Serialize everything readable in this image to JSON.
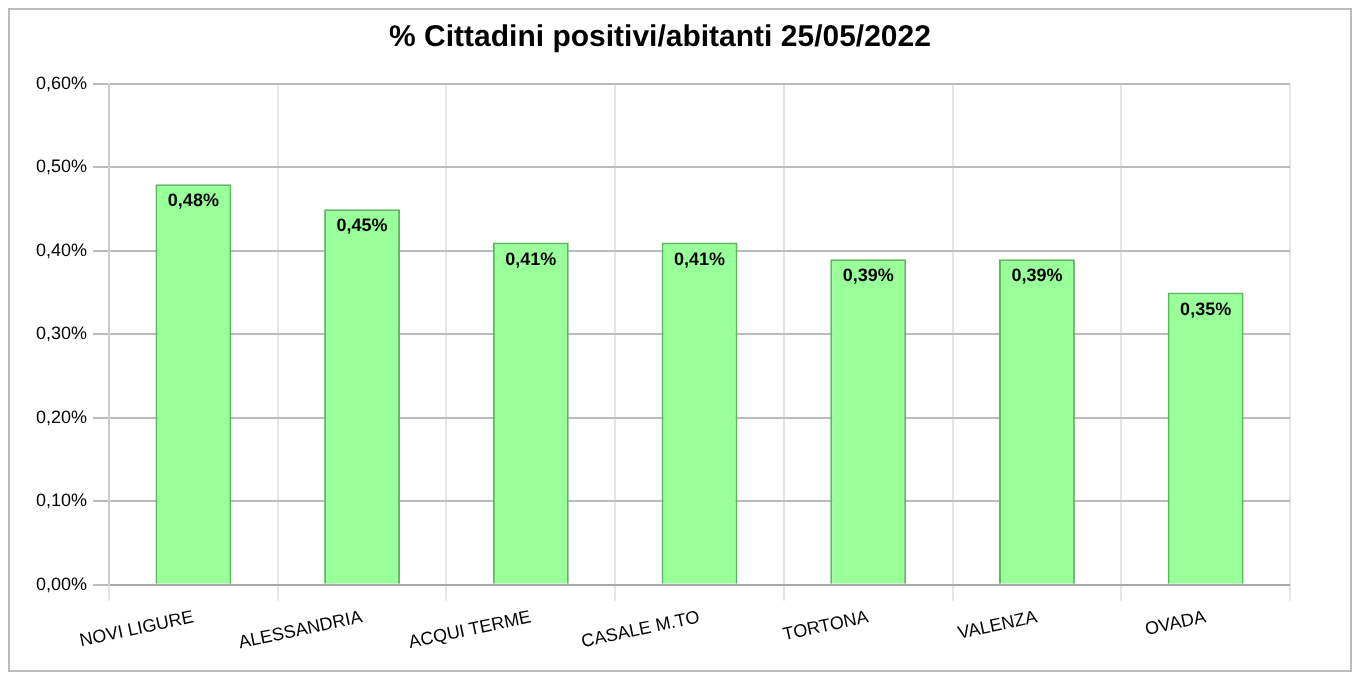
{
  "chart_data": {
    "type": "bar",
    "title": "% Cittadini positivi/abitanti 25/05/2022",
    "categories": [
      "NOVI LIGURE",
      "ALESSANDRIA",
      "ACQUI TERME",
      "CASALE M.TO",
      "TORTONA",
      "VALENZA",
      "OVADA"
    ],
    "values": [
      0.48,
      0.45,
      0.41,
      0.41,
      0.39,
      0.39,
      0.35
    ],
    "value_labels": [
      "0,48%",
      "0,45%",
      "0,41%",
      "0,41%",
      "0,39%",
      "0,39%",
      "0,35%"
    ],
    "color": "#99ff99",
    "ylim": [
      0,
      0.6
    ],
    "yticks": [
      {
        "value": 0,
        "label": "0,00%"
      },
      {
        "value": 0.1,
        "label": "0,10%"
      },
      {
        "value": 0.2,
        "label": "0,20%"
      },
      {
        "value": 0.3,
        "label": "0,30%"
      },
      {
        "value": 0.4,
        "label": "0,40%"
      },
      {
        "value": 0.5,
        "label": "0,50%"
      },
      {
        "value": 0.6,
        "label": "0,60%"
      }
    ],
    "grid": true,
    "legend": false
  }
}
